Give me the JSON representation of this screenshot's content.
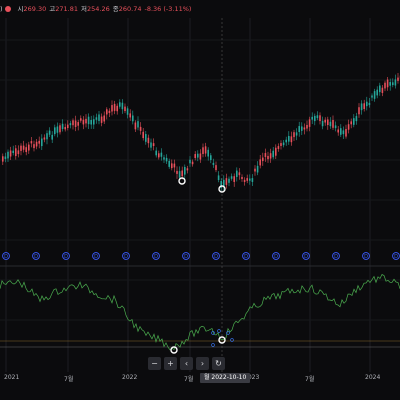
{
  "header": {
    "paren": ")",
    "open_label": "시",
    "open_value": "269.30",
    "high_label": "고",
    "high_value": "271.81",
    "low_label": "저",
    "low_value": "254.26",
    "close_label": "종",
    "close_value": "260.74",
    "change_value": "-8.36 (-3.11%)",
    "down_color": "#e8505b",
    "up_color": "#26a69a"
  },
  "marker_letter": "D",
  "navigation": {
    "zoom_out": "−",
    "zoom_in": "+",
    "scroll_left": "‹",
    "scroll_right": "›",
    "reset": "↻"
  },
  "x_axis": {
    "labels": [
      "2021",
      "7월",
      "2022",
      "7월",
      "2023",
      "7월",
      "2024"
    ],
    "cursor_label": "월 2022-10-10"
  },
  "icons": [
    "circle-marker-icon",
    "dividend-marker-icon"
  ]
}
